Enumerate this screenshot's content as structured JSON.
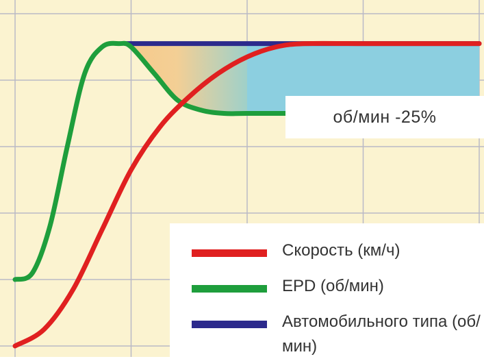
{
  "chart_data": {
    "type": "line",
    "title": "",
    "xlabel": "",
    "ylabel": "",
    "grid": true,
    "xlim": [
      0,
      4
    ],
    "ylim": [
      0,
      5
    ],
    "background": "#fbf3d0",
    "series": [
      {
        "name": "Скорость (км/ч)",
        "color": "#e02020",
        "x": [
          0,
          0.25,
          0.5,
          0.75,
          1.0,
          1.25,
          1.5,
          1.75,
          2.0,
          2.25,
          2.5,
          3.0,
          3.5,
          4.0
        ],
        "y": [
          0,
          0.25,
          0.85,
          1.75,
          2.65,
          3.3,
          3.75,
          4.1,
          4.35,
          4.5,
          4.55,
          4.55,
          4.55,
          4.55
        ]
      },
      {
        "name": "EPD (об/мин)",
        "color": "#1e9e3c",
        "x": [
          0,
          0.15,
          0.3,
          0.45,
          0.6,
          0.75,
          0.9,
          1.0,
          1.2,
          1.4,
          1.6,
          1.8,
          2.0,
          2.5,
          3.0,
          3.5,
          4.0
        ],
        "y": [
          1.0,
          1.1,
          1.8,
          3.0,
          4.1,
          4.5,
          4.55,
          4.5,
          4.1,
          3.7,
          3.55,
          3.5,
          3.5,
          3.5,
          3.5,
          3.5,
          3.5
        ]
      },
      {
        "name": "Автомобильного типа (об/мин)",
        "color": "#2c2a8c",
        "x": [
          0.95,
          4.0
        ],
        "y": [
          4.55,
          4.55
        ]
      }
    ],
    "annotations": [
      {
        "text": "об/мин -25%"
      }
    ],
    "legend": {
      "position": "bottom-right"
    }
  },
  "legend_items": [
    {
      "label": "Скорость (км/ч)",
      "color": "#e02020"
    },
    {
      "label": "EPD (об/мин)",
      "color": "#1e9e3c"
    },
    {
      "label": "Автомобильного типа (об/мин)",
      "color": "#2c2a8c"
    }
  ],
  "colors": {
    "grid": "#b9b9c6",
    "band_blue": "#8ccfe0",
    "shade_orange": "#f7c98a"
  }
}
